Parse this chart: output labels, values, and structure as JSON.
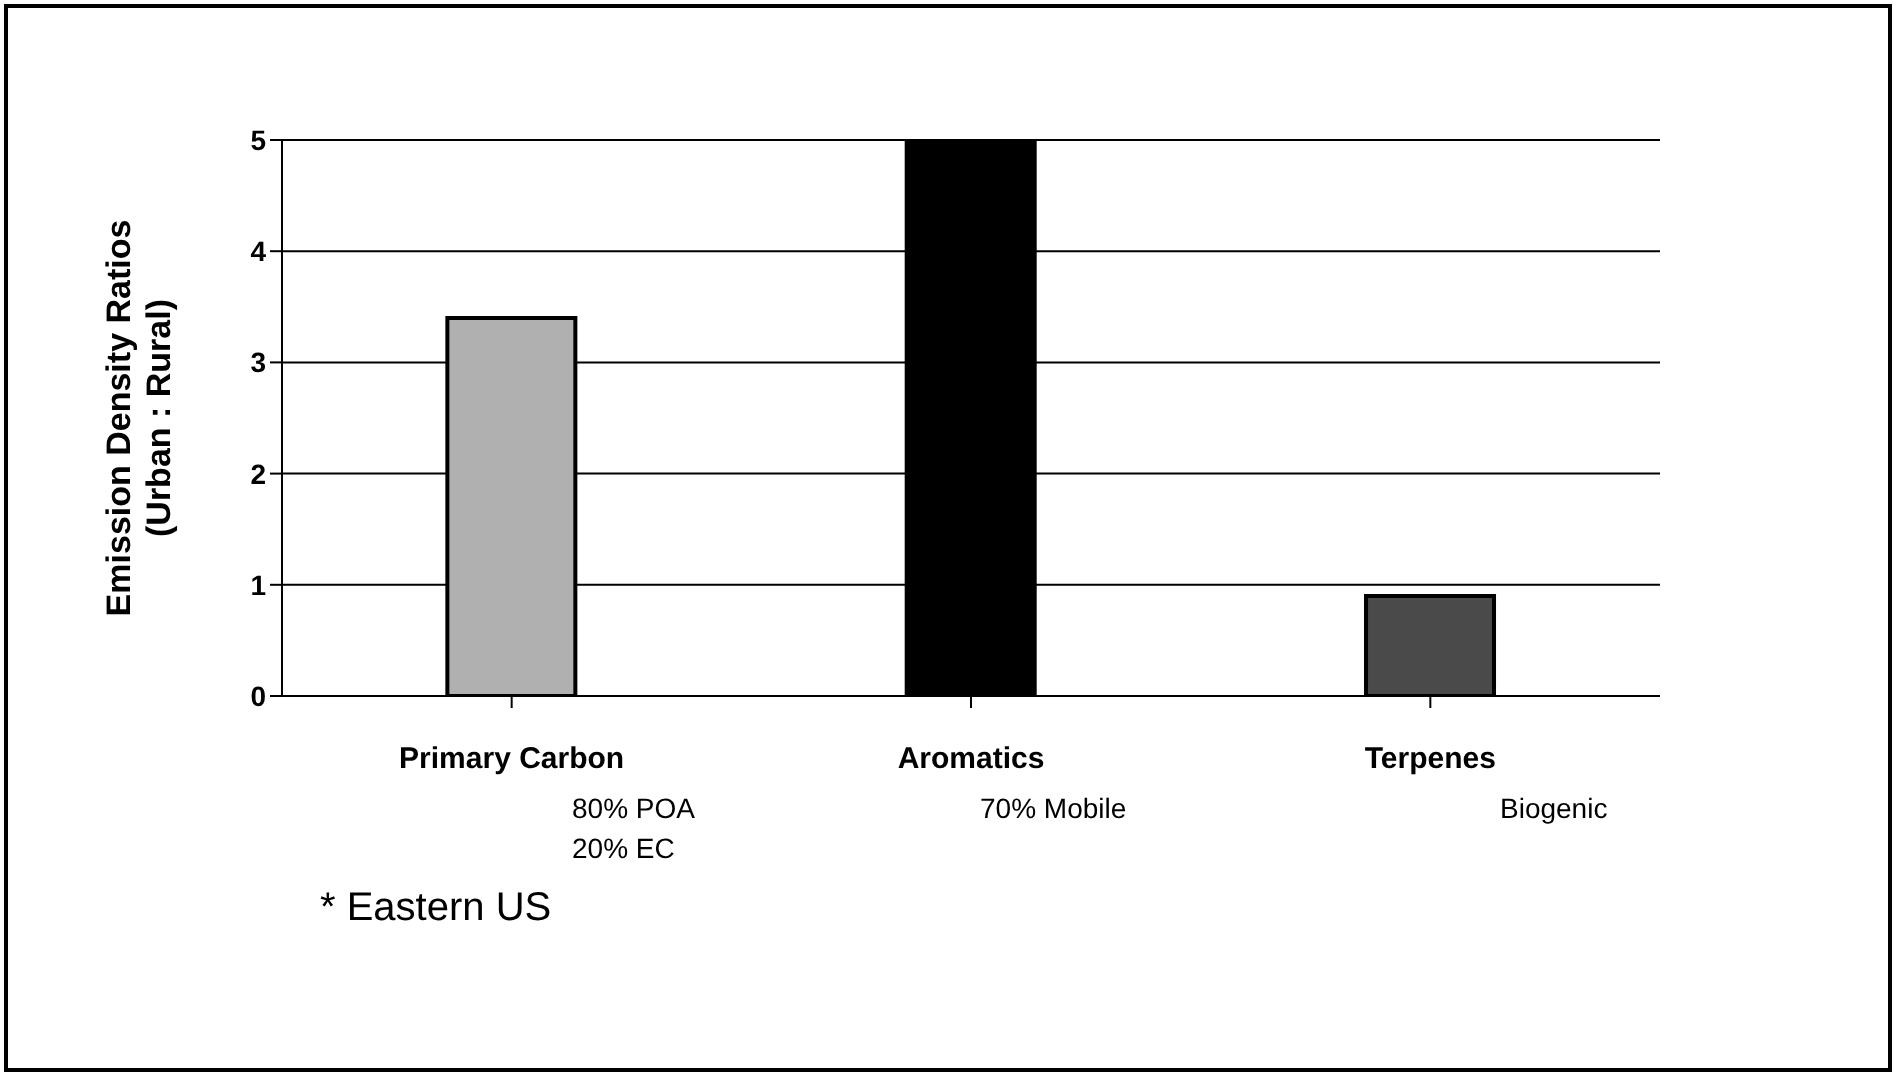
{
  "chart_data": {
    "type": "bar",
    "ylabel": "Emission Density Ratios\n(Urban : Rural)",
    "categories": [
      "Primary Carbon",
      "Aromatics",
      "Terpenes"
    ],
    "values": [
      3.4,
      5,
      0.9
    ],
    "colors": [
      "#b0b0b0",
      "#000000",
      "#4a4a4a"
    ],
    "ylim": [
      0,
      5
    ],
    "yticks": [
      0,
      1,
      2,
      3,
      4,
      5
    ],
    "grid": "y",
    "annotations": [
      "80% POA\n20% EC",
      "70% Mobile",
      "Biogenic",
      "* Eastern US"
    ]
  }
}
